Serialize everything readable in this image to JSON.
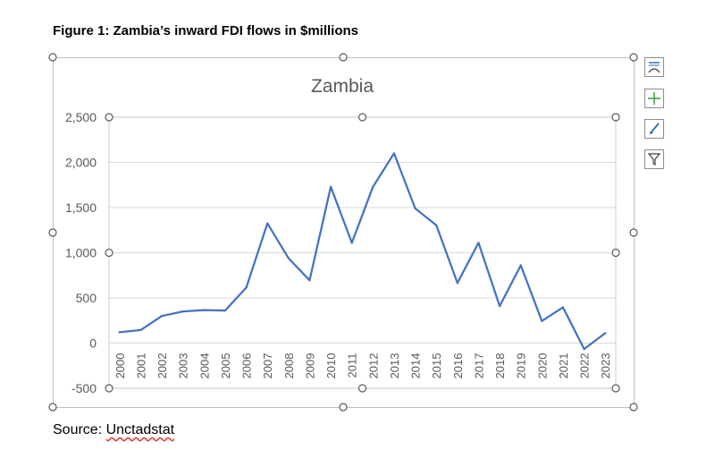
{
  "figure_title": "Figure 1: Zambia’s inward FDI flows in $millions",
  "source": {
    "prefix": "Source: ",
    "name": "Unctadstat"
  },
  "side_buttons": [
    {
      "name": "chart-elements-icon"
    },
    {
      "name": "add-element-icon"
    },
    {
      "name": "chart-styles-brush-icon"
    },
    {
      "name": "chart-filters-icon"
    }
  ],
  "colors": {
    "series": "#4472c4",
    "grid": "#d9d9d9",
    "axis_text": "#595959",
    "handle_stroke": "#595959"
  },
  "chart_data": {
    "type": "line",
    "title": "Zambia",
    "xlabel": "",
    "ylabel": "",
    "ylim": [
      -500,
      2500
    ],
    "y_ticks": [
      -500,
      0,
      500,
      1000,
      1500,
      2000,
      2500
    ],
    "y_tick_labels": [
      "-500",
      "0",
      "500",
      "1,000",
      "1,500",
      "2,000",
      "2,500"
    ],
    "grid": true,
    "legend": "none",
    "x": [
      "2000",
      "2001",
      "2002",
      "2003",
      "2004",
      "2005",
      "2006",
      "2007",
      "2008",
      "2009",
      "2010",
      "2011",
      "2012",
      "2013",
      "2014",
      "2015",
      "2016",
      "2017",
      "2018",
      "2019",
      "2020",
      "2021",
      "2022",
      "2023"
    ],
    "series": [
      {
        "values": [
          120,
          145,
          300,
          350,
          365,
          360,
          615,
          1325,
          940,
          695,
          1730,
          1110,
          1730,
          2100,
          1490,
          1305,
          665,
          1110,
          410,
          860,
          245,
          395,
          -65,
          110
        ]
      }
    ]
  }
}
